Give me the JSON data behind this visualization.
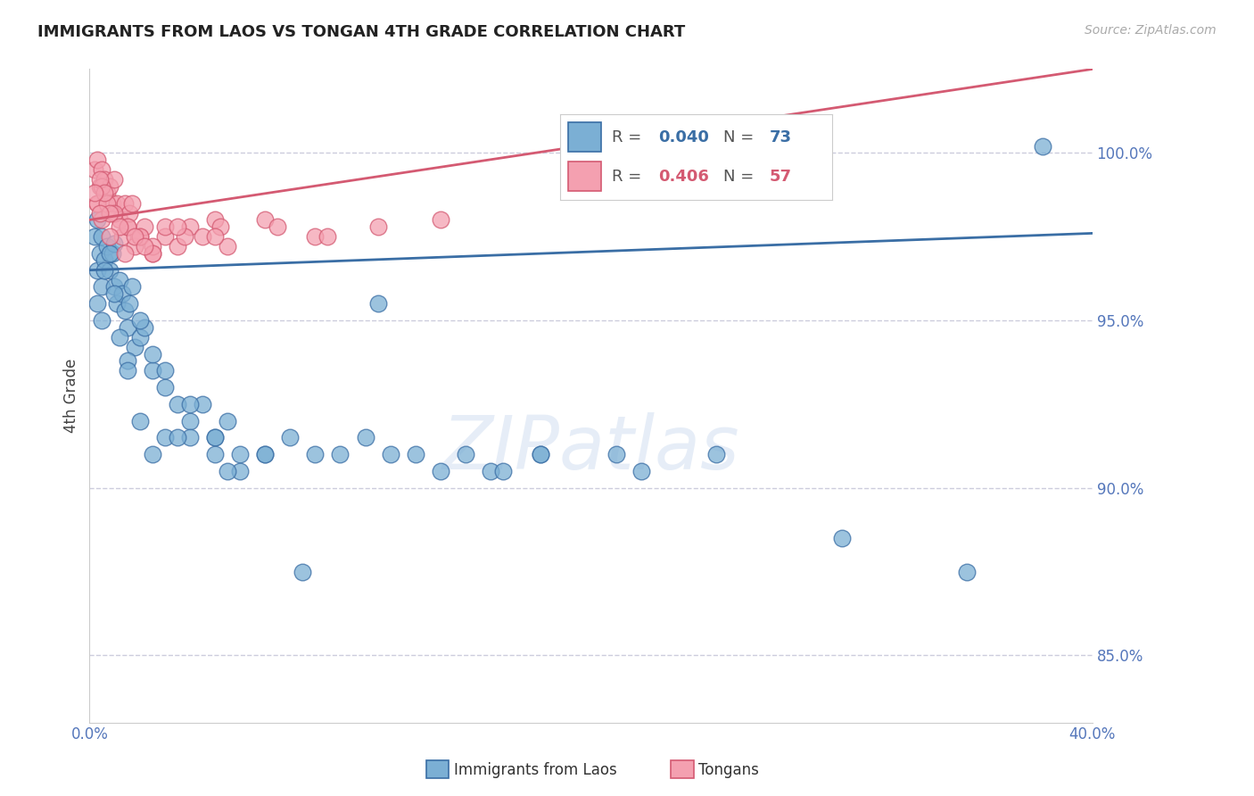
{
  "title": "IMMIGRANTS FROM LAOS VS TONGAN 4TH GRADE CORRELATION CHART",
  "source_text": "Source: ZipAtlas.com",
  "ylabel": "4th Grade",
  "legend_blue_r": "0.040",
  "legend_blue_n": "73",
  "legend_pink_r": "0.406",
  "legend_pink_n": "57",
  "legend_blue_label": "Immigrants from Laos",
  "legend_pink_label": "Tongans",
  "xlim": [
    0.0,
    40.0
  ],
  "ylim": [
    83.0,
    102.5
  ],
  "yticks": [
    85.0,
    90.0,
    95.0,
    100.0
  ],
  "ytick_labels": [
    "85.0%",
    "90.0%",
    "95.0%",
    "100.0%"
  ],
  "xticks": [
    0.0,
    8.0,
    16.0,
    24.0,
    32.0,
    40.0
  ],
  "xtick_labels": [
    "0.0%",
    "",
    "",
    "",
    "",
    "40.0%"
  ],
  "blue_color": "#7bafd4",
  "pink_color": "#f4a0b0",
  "blue_line_color": "#3a6ea5",
  "pink_line_color": "#d45a72",
  "grid_color": "#ccccdd",
  "axis_color": "#5577bb",
  "watermark": "ZIPatlas",
  "blue_scatter_x": [
    0.2,
    0.3,
    0.3,
    0.4,
    0.5,
    0.5,
    0.6,
    0.7,
    0.8,
    0.9,
    1.0,
    1.0,
    1.1,
    1.2,
    1.3,
    1.4,
    1.5,
    1.6,
    1.7,
    1.8,
    2.0,
    2.2,
    2.5,
    3.0,
    3.5,
    4.0,
    4.5,
    5.0,
    5.5,
    6.0,
    0.3,
    0.5,
    0.6,
    0.8,
    1.0,
    1.2,
    1.5,
    2.0,
    2.5,
    3.0,
    4.0,
    5.0,
    6.0,
    7.0,
    8.0,
    10.0,
    12.0,
    14.0,
    16.0,
    18.0,
    1.5,
    2.0,
    3.0,
    4.0,
    5.0,
    7.0,
    9.0,
    11.0,
    13.0,
    15.0,
    18.0,
    21.0,
    25.0,
    30.0,
    35.0,
    2.5,
    3.5,
    5.5,
    8.5,
    11.5,
    16.5,
    22.0,
    38.0
  ],
  "blue_scatter_y": [
    97.5,
    98.0,
    96.5,
    97.0,
    97.5,
    96.0,
    96.8,
    97.2,
    96.5,
    97.0,
    97.3,
    96.0,
    95.5,
    96.2,
    95.8,
    95.3,
    94.8,
    95.5,
    96.0,
    94.2,
    94.5,
    94.8,
    93.5,
    93.0,
    92.5,
    92.0,
    92.5,
    91.5,
    92.0,
    91.0,
    95.5,
    95.0,
    96.5,
    97.0,
    95.8,
    94.5,
    93.8,
    95.0,
    94.0,
    93.5,
    92.5,
    91.5,
    90.5,
    91.0,
    91.5,
    91.0,
    91.0,
    90.5,
    90.5,
    91.0,
    93.5,
    92.0,
    91.5,
    91.5,
    91.0,
    91.0,
    91.0,
    91.5,
    91.0,
    91.0,
    91.0,
    91.0,
    91.0,
    88.5,
    87.5,
    91.0,
    91.5,
    90.5,
    87.5,
    95.5,
    90.5,
    90.5,
    100.2
  ],
  "pink_scatter_x": [
    0.2,
    0.3,
    0.3,
    0.4,
    0.5,
    0.5,
    0.6,
    0.7,
    0.8,
    0.9,
    1.0,
    1.1,
    1.2,
    1.3,
    1.4,
    1.5,
    1.6,
    1.7,
    1.8,
    2.0,
    2.2,
    2.5,
    3.0,
    3.5,
    4.0,
    4.5,
    5.0,
    5.5,
    0.3,
    0.5,
    0.7,
    1.0,
    1.5,
    2.0,
    2.5,
    3.0,
    0.4,
    0.6,
    0.8,
    1.2,
    1.8,
    2.5,
    3.8,
    5.2,
    7.0,
    9.0,
    0.2,
    0.4,
    0.8,
    1.4,
    2.2,
    3.5,
    5.0,
    7.5,
    9.5,
    11.5,
    14.0
  ],
  "pink_scatter_y": [
    99.5,
    99.8,
    98.5,
    99.0,
    99.5,
    98.0,
    99.2,
    98.8,
    99.0,
    98.5,
    99.2,
    98.5,
    98.0,
    97.5,
    98.5,
    97.8,
    98.2,
    98.5,
    97.2,
    97.5,
    97.8,
    97.0,
    97.5,
    97.2,
    97.8,
    97.5,
    98.0,
    97.2,
    98.5,
    99.0,
    98.5,
    98.2,
    97.8,
    97.5,
    97.2,
    97.8,
    99.2,
    98.8,
    98.2,
    97.8,
    97.5,
    97.0,
    97.5,
    97.8,
    98.0,
    97.5,
    98.8,
    98.2,
    97.5,
    97.0,
    97.2,
    97.8,
    97.5,
    97.8,
    97.5,
    97.8,
    98.0
  ]
}
